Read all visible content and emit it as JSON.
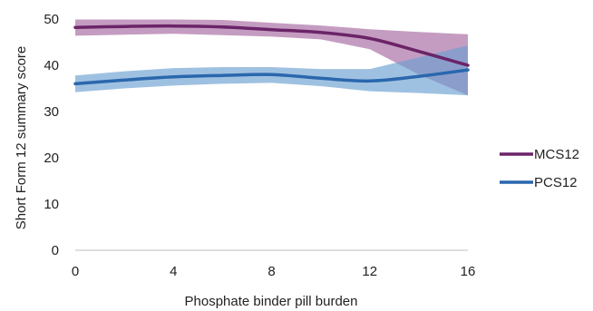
{
  "chart_data": {
    "type": "line",
    "xlabel": "Phosphate binder pill burden",
    "ylabel": "Short Form 12 summary score",
    "xlim": [
      0,
      16
    ],
    "ylim": [
      0,
      50
    ],
    "x_ticks": [
      "0",
      "4",
      "8",
      "12",
      "16"
    ],
    "y_ticks": [
      "0",
      "10",
      "20",
      "30",
      "40",
      "50"
    ],
    "grid": false,
    "legend_position": "right",
    "series": [
      {
        "name": "MCS12",
        "color": "#6b2468",
        "band_color": "#9e5a98",
        "x": [
          0,
          2,
          4,
          6,
          8,
          10,
          12,
          14,
          16
        ],
        "values": [
          48.2,
          48.4,
          48.5,
          48.3,
          47.7,
          47.1,
          45.8,
          43.0,
          40.0
        ],
        "upper": [
          49.9,
          49.9,
          49.9,
          49.8,
          49.2,
          48.6,
          47.8,
          47.2,
          46.7
        ],
        "lower": [
          46.4,
          46.6,
          46.8,
          46.5,
          46.2,
          45.6,
          43.5,
          38.0,
          33.5
        ]
      },
      {
        "name": "PCS12",
        "color": "#2a67ad",
        "band_color": "#6b9fd1",
        "x": [
          0,
          2,
          4,
          6,
          8,
          10,
          12,
          14,
          16
        ],
        "values": [
          36.0,
          36.8,
          37.5,
          37.8,
          38.0,
          37.2,
          36.6,
          37.6,
          39.0
        ],
        "upper": [
          37.8,
          38.7,
          39.4,
          39.6,
          39.6,
          39.2,
          39.2,
          41.7,
          44.3
        ],
        "lower": [
          34.2,
          35.0,
          35.6,
          36.0,
          36.2,
          35.5,
          34.4,
          34.0,
          33.5
        ]
      }
    ]
  }
}
